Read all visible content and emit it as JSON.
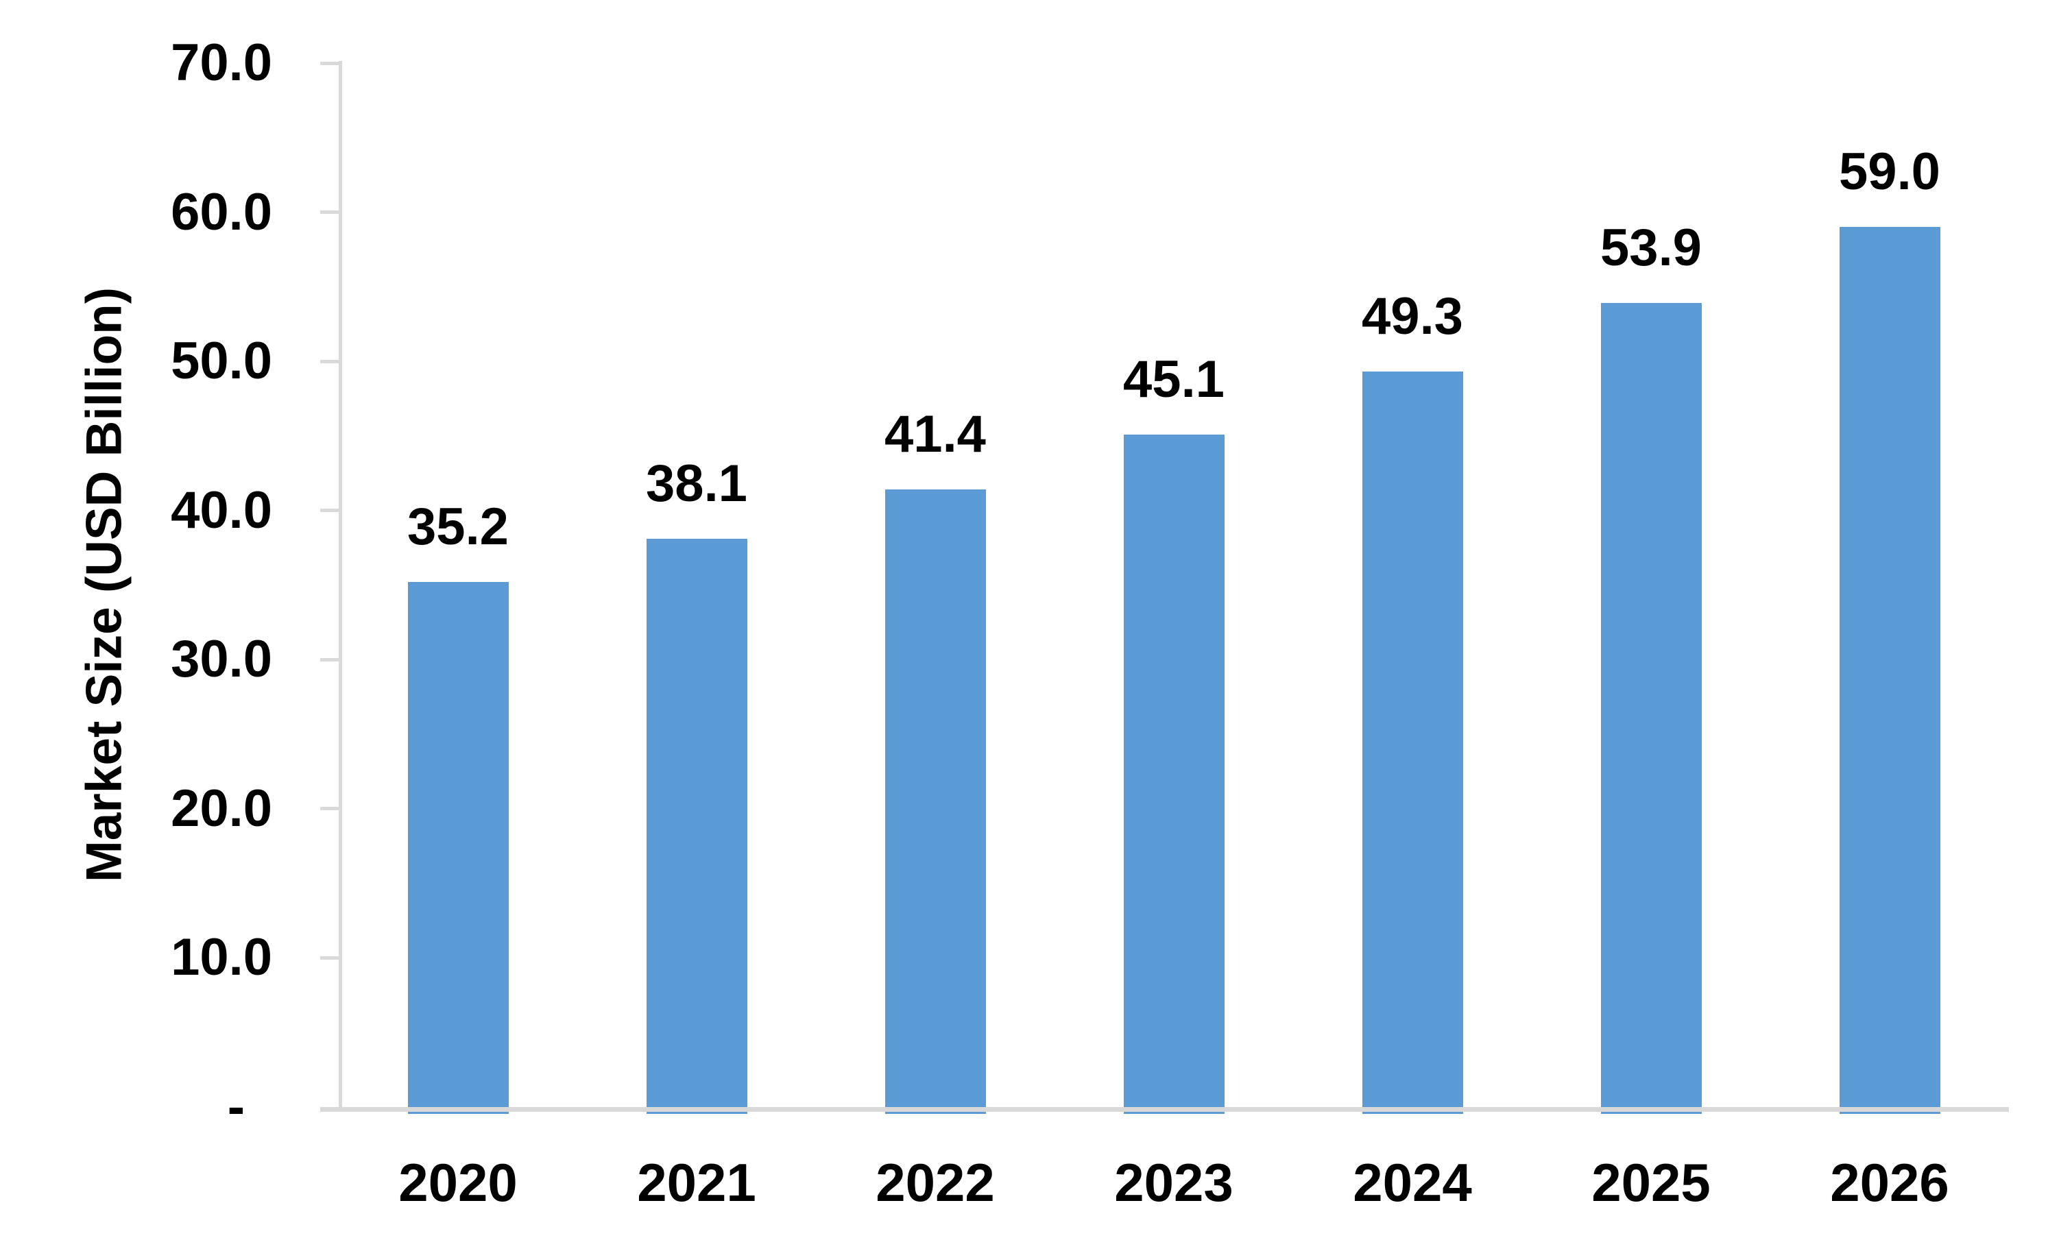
{
  "chart_data": {
    "type": "bar",
    "title": "",
    "categories": [
      "2020",
      "2021",
      "2022",
      "2023",
      "2024",
      "2025",
      "2026"
    ],
    "values": [
      35.2,
      38.1,
      41.4,
      45.1,
      49.3,
      53.9,
      59.0
    ],
    "data_labels": [
      "35.2",
      "38.1",
      "41.4",
      "45.1",
      "49.3",
      "53.9",
      "59.0"
    ],
    "xlabel": "",
    "ylabel": "Market Size (USD Billion)",
    "ylim": [
      0,
      70
    ],
    "ytick_step": 10,
    "ytick_labels": [
      "-",
      "10.0",
      "20.0",
      "30.0",
      "40.0",
      "50.0",
      "60.0",
      "70.0"
    ],
    "grid": false,
    "legend": "none",
    "bar_color": "#5B9BD5",
    "axis_color": "#D9D9D9",
    "text_color": "#000000",
    "background": "#FFFFFF"
  }
}
